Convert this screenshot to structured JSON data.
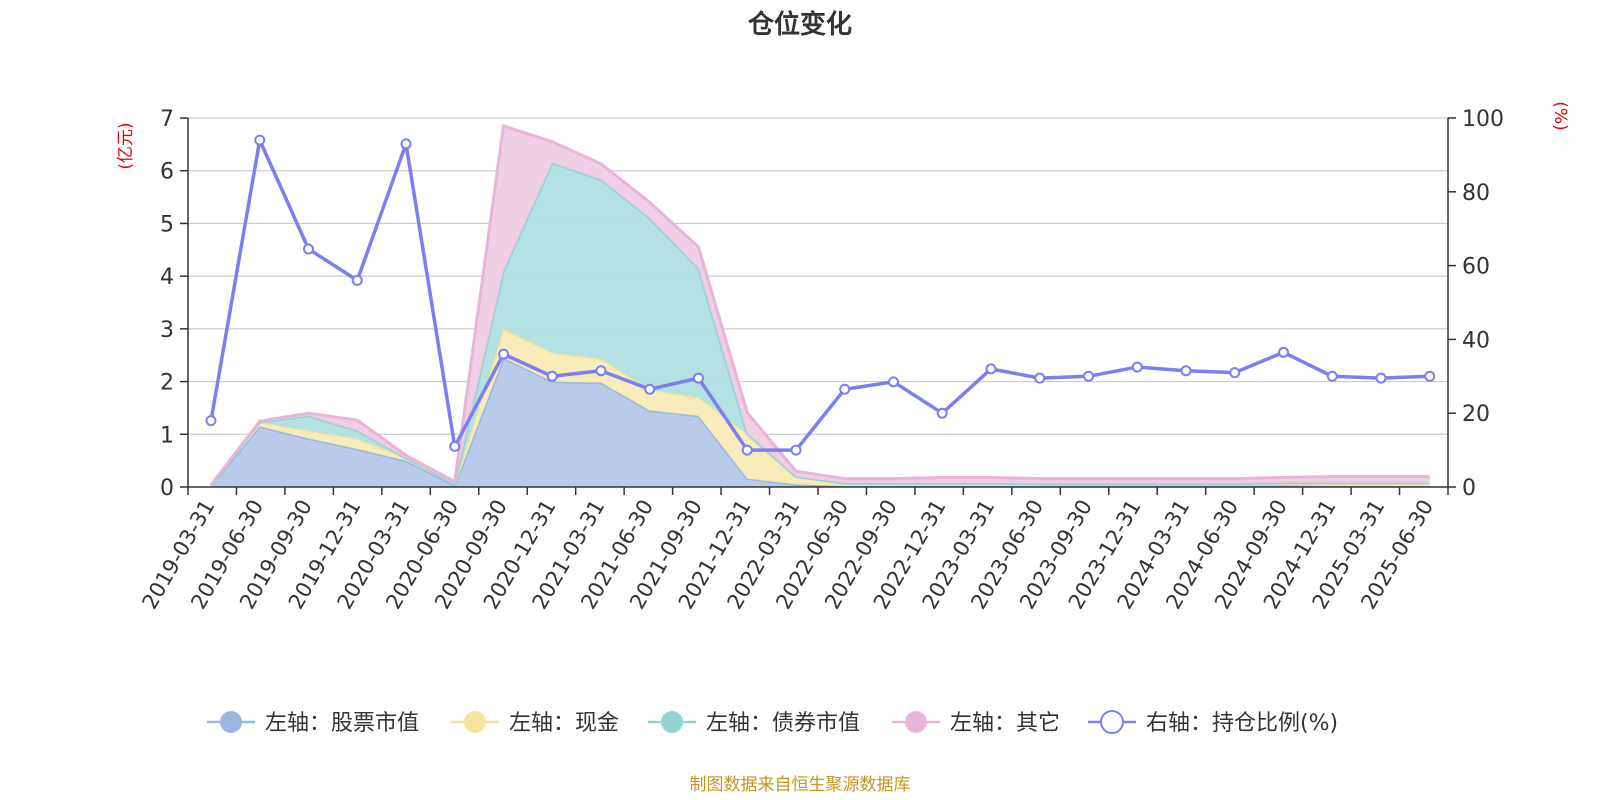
{
  "chart_data": {
    "type": "area",
    "title": "仓位变化",
    "left_unit": "(亿元)",
    "right_unit": "(%)",
    "y_left_range": [
      0,
      7
    ],
    "y_left_ticks": [
      "0",
      "1",
      "2",
      "3",
      "4",
      "5",
      "6",
      "7"
    ],
    "y_right_range": [
      0,
      100
    ],
    "y_right_ticks": [
      "0",
      "20",
      "40",
      "60",
      "80",
      "100"
    ],
    "grid": true,
    "stacked": true,
    "legend_position": "bottom",
    "categories": [
      "2019-03-31",
      "2019-06-30",
      "2019-09-30",
      "2019-12-31",
      "2020-03-31",
      "2020-06-30",
      "2020-09-30",
      "2020-12-31",
      "2021-03-31",
      "2021-06-30",
      "2021-09-30",
      "2021-12-31",
      "2022-03-31",
      "2022-06-30",
      "2022-09-30",
      "2022-12-31",
      "2023-03-31",
      "2023-06-30",
      "2023-09-30",
      "2023-12-31",
      "2024-03-31",
      "2024-06-30",
      "2024-09-30",
      "2024-12-31",
      "2025-03-31",
      "2025-06-30"
    ],
    "series": [
      {
        "name": "左轴：股票市值",
        "axis": "left",
        "color": "#9ab8e0",
        "fill": "#b4c8ea",
        "values": [
          0.02,
          1.15,
          0.92,
          0.72,
          0.5,
          0.03,
          2.45,
          2.0,
          1.98,
          1.45,
          1.35,
          0.16,
          0.05,
          0.02,
          0.02,
          0.02,
          0.02,
          0.02,
          0.02,
          0.02,
          0.02,
          0.02,
          0.03,
          0.02,
          0.02,
          0.02
        ]
      },
      {
        "name": "左轴：现金",
        "axis": "left",
        "color": "#f5e49c",
        "fill": "#f8ebb6",
        "values": [
          0.01,
          0.08,
          0.15,
          0.2,
          0.05,
          0.03,
          0.55,
          0.55,
          0.45,
          0.4,
          0.35,
          0.85,
          0.15,
          0.05,
          0.05,
          0.05,
          0.05,
          0.04,
          0.04,
          0.04,
          0.04,
          0.04,
          0.05,
          0.06,
          0.06,
          0.06
        ]
      },
      {
        "name": "左轴：债券市值",
        "axis": "left",
        "color": "#92d4d4",
        "fill": "#b0e0e0",
        "values": [
          0,
          0,
          0.28,
          0.15,
          0,
          0,
          1.1,
          3.6,
          3.4,
          3.25,
          2.45,
          0,
          0,
          0,
          0,
          0,
          0,
          0,
          0,
          0,
          0,
          0,
          0,
          0,
          0,
          0
        ]
      },
      {
        "name": "左轴：其它",
        "axis": "left",
        "color": "#e8b4d8",
        "fill": "#efcbe3",
        "values": [
          0.01,
          0.02,
          0.05,
          0.2,
          0.05,
          0.04,
          2.75,
          0.4,
          0.3,
          0.3,
          0.4,
          0.4,
          0.1,
          0.09,
          0.09,
          0.11,
          0.11,
          0.1,
          0.1,
          0.1,
          0.1,
          0.1,
          0.1,
          0.12,
          0.12,
          0.12
        ]
      },
      {
        "name": "右轴：持仓比例(%)",
        "axis": "right",
        "color": "#7b7ff0",
        "values": [
          18,
          94,
          64.5,
          56,
          93,
          11,
          36,
          30,
          31.5,
          26.5,
          29.5,
          10,
          10,
          26.5,
          28.5,
          20,
          32,
          29.5,
          30,
          32.5,
          31.5,
          31,
          36.5,
          30,
          29.5,
          30
        ]
      }
    ],
    "source_note": "制图数据来自恒生聚源数据库"
  }
}
